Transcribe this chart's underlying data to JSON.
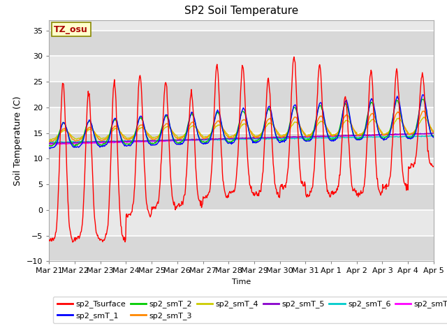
{
  "title": "SP2 Soil Temperature",
  "ylabel": "Soil Temperature (C)",
  "xlabel": "Time",
  "ylim": [
    -10,
    37
  ],
  "yticks": [
    -10,
    -5,
    0,
    5,
    10,
    15,
    20,
    25,
    30,
    35
  ],
  "tz_label": "TZ_osu",
  "series_colors": {
    "sp2_Tsurface": "#ff0000",
    "sp2_smT_1": "#0000ff",
    "sp2_smT_2": "#00cc00",
    "sp2_smT_3": "#ff8800",
    "sp2_smT_4": "#cccc00",
    "sp2_smT_5": "#8800cc",
    "sp2_smT_6": "#00cccc",
    "sp2_smT_7": "#ff00ff"
  },
  "x_tick_labels": [
    "Mar 21",
    "Mar 22",
    "Mar 23",
    "Mar 24",
    "Mar 25",
    "Mar 26",
    "Mar 27",
    "Mar 28",
    "Mar 29",
    "Mar 30",
    "Mar 31",
    "Apr 1",
    "Apr 2",
    "Apr 3",
    "Apr 4",
    "Apr 5"
  ],
  "n_days": 15,
  "pts_per_day": 48,
  "surface_mins": [
    -6.0,
    -5.5,
    -5.8,
    -1.0,
    0.5,
    1.0,
    2.5,
    3.5,
    3.0,
    4.5,
    3.0,
    3.5,
    3.0,
    4.5,
    8.5
  ],
  "surface_maxs": [
    25.0,
    23.0,
    25.0,
    26.5,
    25.0,
    23.0,
    28.0,
    28.0,
    25.5,
    30.0,
    28.5,
    22.0,
    27.0,
    27.0,
    26.5
  ],
  "fig_width": 6.4,
  "fig_height": 4.8,
  "dpi": 100
}
